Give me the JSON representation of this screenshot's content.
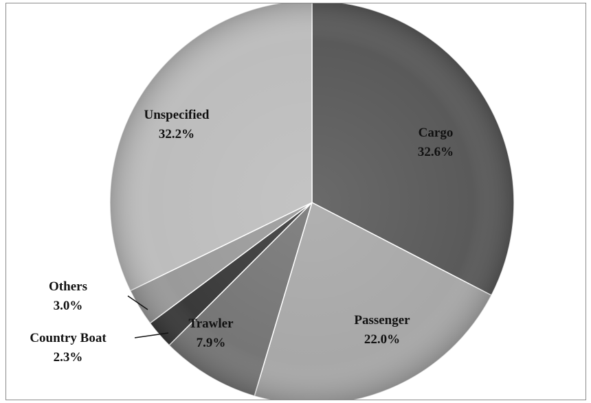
{
  "chart_data": {
    "type": "pie",
    "title": "",
    "slices": [
      {
        "label": "Cargo",
        "value": 32.6,
        "value_text": "32.6%",
        "color": "#5a5a5a"
      },
      {
        "label": "Passenger",
        "value": 22.0,
        "value_text": "22.0%",
        "color": "#a8a8a8"
      },
      {
        "label": "Trawler",
        "value": 7.9,
        "value_text": "7.9%",
        "color": "#767676"
      },
      {
        "label": "Country Boat",
        "value": 2.3,
        "value_text": "2.3%",
        "color": "#3a3a3a"
      },
      {
        "label": "Others",
        "value": 3.0,
        "value_text": "3.0%",
        "color": "#9a9a9a"
      },
      {
        "label": "Unspecified",
        "value": 32.2,
        "value_text": "32.2%",
        "color": "#bdbdbd"
      }
    ],
    "legend": "none",
    "labels": "on-slice"
  }
}
